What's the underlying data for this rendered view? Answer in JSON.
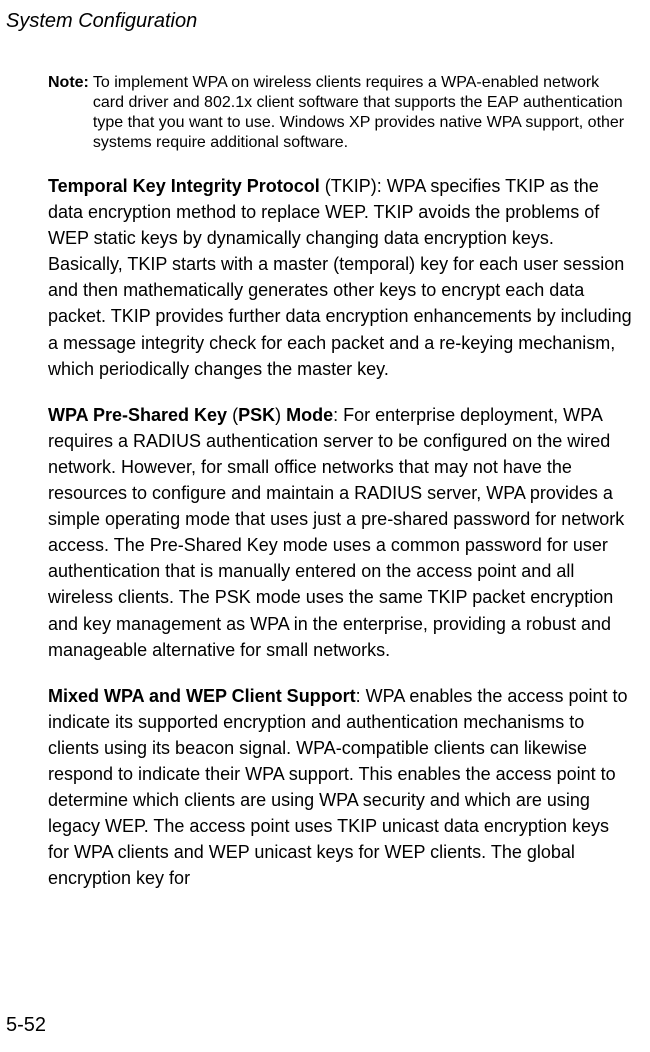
{
  "header": {
    "title": "System Configuration"
  },
  "note": {
    "label": "Note:",
    "text": "To implement WPA on wireless clients requires a WPA-enabled network card driver and 802.1x client software that supports the EAP authentication type that you want to use. Windows XP provides native WPA support, other systems require additional software."
  },
  "para1": {
    "bold": "Temporal Key Integrity Protocol",
    "rest": " (TKIP): WPA specifies TKIP as the data encryption method to replace WEP. TKIP avoids the problems of WEP static keys by dynamically changing data encryption keys. Basically, TKIP starts with a master (temporal) key for each user session and then mathematically generates other keys to encrypt each data packet. TKIP provides further data encryption enhancements by including a message integrity check for each packet and a re-keying mechanism, which periodically changes the master key."
  },
  "para2": {
    "bold1": "WPA Pre-Shared Key",
    "plain1": " (",
    "bold2": "PSK",
    "plain2": ") ",
    "bold3": "Mode",
    "rest": ": For enterprise deployment, WPA requires a RADIUS authentication server to be configured on the wired network. However, for small office networks that may not have the resources to configure and maintain a RADIUS server, WPA provides a simple operating mode that uses just a pre-shared password for network access. The Pre-Shared Key mode uses a common password for user authentication that is manually entered on the access point and all wireless clients. The PSK mode uses the same TKIP packet encryption and key management as WPA in the enterprise, providing a robust and manageable alternative for small networks."
  },
  "para3": {
    "bold": "Mixed WPA and WEP Client Support",
    "rest": ": WPA enables the access point to indicate its supported encryption and authentication mechanisms to clients using its beacon signal. WPA-compatible clients can likewise respond to indicate their WPA support. This enables the access point to determine which clients are using WPA security and which are using legacy WEP. The access point uses TKIP unicast data encryption keys for WPA clients and WEP unicast keys for WEP clients. The global encryption key for"
  },
  "footer": {
    "page": "5-52"
  }
}
